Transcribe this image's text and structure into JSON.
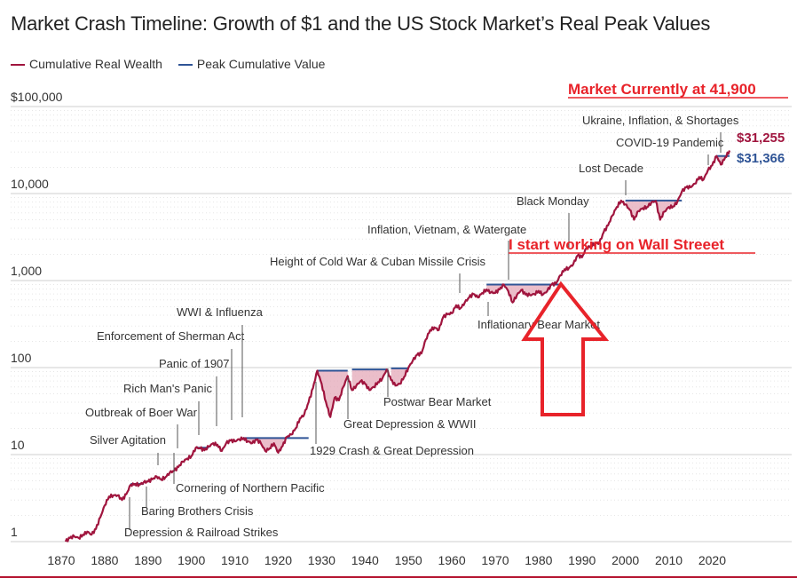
{
  "chart_data": {
    "type": "line",
    "title": "Market Crash Timeline: Growth of $1 and the US Stock Market’s Real Peak Values",
    "yscale": "log",
    "ylim": [
      1,
      100000
    ],
    "xlim": [
      1870,
      2024
    ],
    "y_ticks": [
      {
        "value": 100000,
        "label": "$100,000"
      },
      {
        "value": 10000,
        "label": "10,000"
      },
      {
        "value": 1000,
        "label": "1,000"
      },
      {
        "value": 100,
        "label": "100"
      },
      {
        "value": 10,
        "label": "10"
      },
      {
        "value": 1,
        "label": "1"
      }
    ],
    "x_ticks": [
      "1870",
      "1880",
      "1890",
      "1900",
      "1910",
      "1920",
      "1930",
      "1940",
      "1950",
      "1960",
      "1970",
      "1980",
      "1990",
      "2000",
      "2010",
      "2020"
    ],
    "legend": [
      {
        "name": "Cumulative Real Wealth",
        "color": "#a0153e"
      },
      {
        "name": "Peak Cumulative Value",
        "color": "#2f5496"
      }
    ],
    "series": [
      {
        "name": "Cumulative Real Wealth",
        "color": "#a0153e",
        "points": [
          [
            1871,
            1.0
          ],
          [
            1872,
            1.1
          ],
          [
            1873,
            1.15
          ],
          [
            1874,
            1.1
          ],
          [
            1875,
            1.2
          ],
          [
            1876,
            1.3
          ],
          [
            1877,
            1.2
          ],
          [
            1878,
            1.4
          ],
          [
            1879,
            1.9
          ],
          [
            1880,
            2.6
          ],
          [
            1881,
            3.3
          ],
          [
            1882,
            3.4
          ],
          [
            1883,
            3.4
          ],
          [
            1884,
            3.0
          ],
          [
            1885,
            3.5
          ],
          [
            1886,
            4.5
          ],
          [
            1887,
            4.6
          ],
          [
            1888,
            4.5
          ],
          [
            1889,
            4.8
          ],
          [
            1890,
            4.9
          ],
          [
            1891,
            5.2
          ],
          [
            1892,
            5.6
          ],
          [
            1893,
            5.2
          ],
          [
            1894,
            5.5
          ],
          [
            1895,
            6.2
          ],
          [
            1896,
            6.5
          ],
          [
            1897,
            7.2
          ],
          [
            1898,
            8.3
          ],
          [
            1899,
            9.0
          ],
          [
            1900,
            9.6
          ],
          [
            1901,
            12.0
          ],
          [
            1902,
            11.8
          ],
          [
            1903,
            11.2
          ],
          [
            1904,
            12.4
          ],
          [
            1905,
            13.5
          ],
          [
            1906,
            13.0
          ],
          [
            1907,
            11.0
          ],
          [
            1908,
            13.5
          ],
          [
            1909,
            14.5
          ],
          [
            1910,
            14.2
          ],
          [
            1911,
            15.0
          ],
          [
            1912,
            15.5
          ],
          [
            1913,
            14.2
          ],
          [
            1914,
            13.5
          ],
          [
            1915,
            14.8
          ],
          [
            1916,
            13.5
          ],
          [
            1917,
            11.0
          ],
          [
            1918,
            11.8
          ],
          [
            1919,
            13.5
          ],
          [
            1920,
            10.5
          ],
          [
            1921,
            12.5
          ],
          [
            1922,
            16.0
          ],
          [
            1923,
            17.0
          ],
          [
            1924,
            20.0
          ],
          [
            1925,
            26.0
          ],
          [
            1926,
            29.0
          ],
          [
            1927,
            40.0
          ],
          [
            1928,
            58.0
          ],
          [
            1929,
            92.0
          ],
          [
            1930,
            65.0
          ],
          [
            1931,
            40.0
          ],
          [
            1932,
            27.0
          ],
          [
            1933,
            45.0
          ],
          [
            1934,
            42.0
          ],
          [
            1935,
            60.0
          ],
          [
            1936,
            80.0
          ],
          [
            1937,
            55.0
          ],
          [
            1938,
            62.0
          ],
          [
            1939,
            70.0
          ],
          [
            1940,
            65.0
          ],
          [
            1941,
            55.0
          ],
          [
            1942,
            60.0
          ],
          [
            1943,
            68.0
          ],
          [
            1944,
            75.0
          ],
          [
            1945,
            95.0
          ],
          [
            1946,
            72.0
          ],
          [
            1947,
            62.0
          ],
          [
            1948,
            65.0
          ],
          [
            1949,
            78.0
          ],
          [
            1950,
            100.0
          ],
          [
            1951,
            120.0
          ],
          [
            1952,
            140.0
          ],
          [
            1953,
            145.0
          ],
          [
            1954,
            210.0
          ],
          [
            1955,
            270.0
          ],
          [
            1956,
            290.0
          ],
          [
            1957,
            270.0
          ],
          [
            1958,
            380.0
          ],
          [
            1959,
            410.0
          ],
          [
            1960,
            420.0
          ],
          [
            1961,
            520.0
          ],
          [
            1962,
            480.0
          ],
          [
            1963,
            560.0
          ],
          [
            1964,
            640.0
          ],
          [
            1965,
            700.0
          ],
          [
            1966,
            640.0
          ],
          [
            1967,
            720.0
          ],
          [
            1968,
            790.0
          ],
          [
            1969,
            730.0
          ],
          [
            1970,
            720.0
          ],
          [
            1971,
            790.0
          ],
          [
            1972,
            900.0
          ],
          [
            1973,
            760.0
          ],
          [
            1974,
            560.0
          ],
          [
            1975,
            680.0
          ],
          [
            1976,
            780.0
          ],
          [
            1977,
            690.0
          ],
          [
            1978,
            680.0
          ],
          [
            1979,
            700.0
          ],
          [
            1980,
            760.0
          ],
          [
            1981,
            690.0
          ],
          [
            1982,
            760.0
          ],
          [
            1983,
            900.0
          ],
          [
            1984,
            920.0
          ],
          [
            1985,
            1150.0
          ],
          [
            1986,
            1350.0
          ],
          [
            1987,
            1400.0
          ],
          [
            1988,
            1550.0
          ],
          [
            1989,
            1950.0
          ],
          [
            1990,
            1850.0
          ],
          [
            1991,
            2350.0
          ],
          [
            1992,
            2500.0
          ],
          [
            1993,
            2700.0
          ],
          [
            1994,
            2700.0
          ],
          [
            1995,
            3600.0
          ],
          [
            1996,
            4300.0
          ],
          [
            1997,
            5600.0
          ],
          [
            1998,
            7000.0
          ],
          [
            1999,
            8300.0
          ],
          [
            2000,
            7500.0
          ],
          [
            2001,
            6500.0
          ],
          [
            2002,
            5000.0
          ],
          [
            2003,
            6300.0
          ],
          [
            2004,
            6800.0
          ],
          [
            2005,
            7000.0
          ],
          [
            2006,
            7900.0
          ],
          [
            2007,
            8200.0
          ],
          [
            2008,
            5000.0
          ],
          [
            2009,
            6200.0
          ],
          [
            2010,
            7000.0
          ],
          [
            2011,
            7100.0
          ],
          [
            2012,
            8100.0
          ],
          [
            2013,
            10500.0
          ],
          [
            2014,
            11800.0
          ],
          [
            2015,
            11800.0
          ],
          [
            2016,
            13000.0
          ],
          [
            2017,
            15500.0
          ],
          [
            2018,
            14500.0
          ],
          [
            2019,
            18500.0
          ],
          [
            2020,
            21000.0
          ],
          [
            2021,
            27000.0
          ],
          [
            2022,
            21500.0
          ],
          [
            2023,
            26000.0
          ],
          [
            2024,
            31255.0
          ]
        ]
      },
      {
        "name": "Peak Cumulative Value",
        "color": "#2f5496",
        "segments": [
          [
            [
              1886,
              4.6
            ],
            [
              1889,
              4.6
            ]
          ],
          [
            [
              1901,
              12.0
            ],
            [
              1904,
              12.0
            ]
          ],
          [
            [
              1912,
              15.5
            ],
            [
              1927,
              15.5
            ]
          ],
          [
            [
              1929,
              92.0
            ],
            [
              1936,
              92.0
            ]
          ],
          [
            [
              1937,
              95.0
            ],
            [
              1945,
              95.0
            ]
          ],
          [
            [
              1946,
              98.0
            ],
            [
              1950,
              98.0
            ]
          ],
          [
            [
              1968,
              900.0
            ],
            [
              1985,
              900.0
            ]
          ],
          [
            [
              2000,
              8300.0
            ],
            [
              2013,
              8300.0
            ]
          ],
          [
            [
              2021,
              27000.0
            ],
            [
              2024,
              27000.0
            ]
          ]
        ]
      }
    ],
    "end_labels": [
      {
        "text": "$31,255",
        "color": "#a0153e",
        "value": 31255
      },
      {
        "text": "$31,366",
        "color": "#2f5496",
        "value": 31366
      }
    ],
    "annotations": [
      {
        "text": "Depression & Railroad Strikes",
        "year": 1873
      },
      {
        "text": "Baring Brothers Crisis",
        "year": 1890
      },
      {
        "text": "Cornering of Northern Pacific",
        "year": 1901
      },
      {
        "text": "Silver Agitation",
        "year": 1893
      },
      {
        "text": "Outbreak of Boer War",
        "year": 1899
      },
      {
        "text": "Rich Man's Panic",
        "year": 1903
      },
      {
        "text": "Panic of 1907",
        "year": 1907
      },
      {
        "text": "Enforcement of Sherman Act",
        "year": 1910
      },
      {
        "text": "WWI & Influenza",
        "year": 1913
      },
      {
        "text": "1929 Crash & Great Depression",
        "year": 1929
      },
      {
        "text": "Great Depression & WWII",
        "year": 1937
      },
      {
        "text": "Postwar Bear Market",
        "year": 1946
      },
      {
        "text": "Height of Cold War & Cuban Missile Crisis",
        "year": 1962
      },
      {
        "text": "Inflation, Vietnam, & Watergate",
        "year": 1973
      },
      {
        "text": "Inflationary Bear Market",
        "year": 1977
      },
      {
        "text": "Black Monday",
        "year": 1987
      },
      {
        "text": "Lost Decade",
        "year": 2000
      },
      {
        "text": "COVID-19 Pandemic",
        "year": 2020
      },
      {
        "text": "Ukraine, Inflation, & Shortages",
        "year": 2022
      }
    ],
    "overlay": {
      "header_note": "Market Currently at 41,900",
      "career_note": "I start working on Wall Streeet",
      "arrow_color": "#e8232a"
    }
  }
}
